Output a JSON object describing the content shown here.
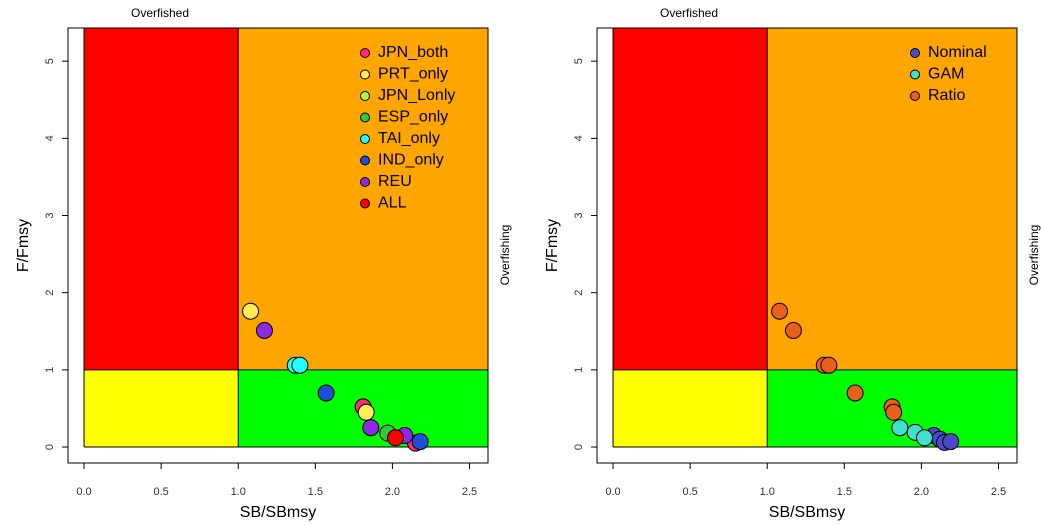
{
  "chart_data": [
    {
      "type": "scatter",
      "xlabel": "SB/SBmsy",
      "ylabel": "F/Fmsy",
      "top_label": "Overfished",
      "right_label": "Overfishing",
      "xlim": [
        -0.104,
        2.62
      ],
      "ylim": [
        -0.207,
        5.43
      ],
      "xticks": [
        {
          "value": 0,
          "label": "0.0"
        },
        {
          "value": 0.5,
          "label": "0.5"
        },
        {
          "value": 1,
          "label": "1.0"
        },
        {
          "value": 1.5,
          "label": "1.5"
        },
        {
          "value": 2,
          "label": "2.0"
        },
        {
          "value": 2.5,
          "label": "2.5"
        }
      ],
      "yticks": [
        0,
        1,
        2,
        3,
        4,
        5
      ],
      "vline": 1,
      "hline": 1,
      "quadrant_colors": {
        "top_left": "#ff0000",
        "top_right": "#ffa500",
        "bottom_left": "#ffff00",
        "bottom_right": "#00ff00"
      },
      "legend": "top-right",
      "series": [
        {
          "name": "JPN_both",
          "color": "#ff2a7a",
          "x": [
            1.81,
            2.15
          ],
          "y": [
            0.52,
            0.05
          ]
        },
        {
          "name": "PRT_only",
          "color": "#ffee55",
          "x": [
            1.08,
            1.83
          ],
          "y": [
            1.76,
            0.45
          ]
        },
        {
          "name": "JPN_Lonly",
          "color": "#aaff33",
          "x": [],
          "y": []
        },
        {
          "name": "ESP_only",
          "color": "#33cc33",
          "x": [
            1.97
          ],
          "y": [
            0.18
          ]
        },
        {
          "name": "TAI_only",
          "color": "#22ffff",
          "x": [
            1.37,
            1.4
          ],
          "y": [
            1.06,
            1.06
          ]
        },
        {
          "name": "IND_only",
          "color": "#1e4fd8",
          "x": [
            1.57,
            2.18
          ],
          "y": [
            0.7,
            0.07
          ]
        },
        {
          "name": "REU",
          "color": "#8a2be2",
          "x": [
            1.17,
            1.86,
            2.08
          ],
          "y": [
            1.51,
            0.25,
            0.15
          ]
        },
        {
          "name": "ALL",
          "color": "#ff0000",
          "x": [
            2.02
          ],
          "y": [
            0.12
          ]
        }
      ]
    },
    {
      "type": "scatter",
      "xlabel": "SB/SBmsy",
      "ylabel": "F/Fmsy",
      "top_label": "Overfished",
      "right_label": "Overfishing",
      "xlim": [
        -0.104,
        2.62
      ],
      "ylim": [
        -0.207,
        5.43
      ],
      "xticks": [
        {
          "value": 0,
          "label": "0.0"
        },
        {
          "value": 0.5,
          "label": "0.5"
        },
        {
          "value": 1,
          "label": "1.0"
        },
        {
          "value": 1.5,
          "label": "1.5"
        },
        {
          "value": 2,
          "label": "2.0"
        },
        {
          "value": 2.5,
          "label": "2.5"
        }
      ],
      "yticks": [
        0,
        1,
        2,
        3,
        4,
        5
      ],
      "vline": 1,
      "hline": 1,
      "quadrant_colors": {
        "top_left": "#ff0000",
        "top_right": "#ffa500",
        "bottom_left": "#ffff00",
        "bottom_right": "#00ff00"
      },
      "legend": "top-right",
      "series": [
        {
          "name": "Nominal",
          "color": "#4a4ac8",
          "x": [
            2.08,
            2.12,
            2.15,
            2.19
          ],
          "y": [
            0.15,
            0.1,
            0.06,
            0.07
          ]
        },
        {
          "name": "GAM",
          "color": "#40e0d0",
          "x": [
            1.86,
            1.96,
            2.02
          ],
          "y": [
            0.25,
            0.19,
            0.12
          ]
        },
        {
          "name": "Ratio",
          "color": "#e8601c",
          "x": [
            1.08,
            1.17,
            1.37,
            1.4,
            1.57,
            1.81,
            1.82
          ],
          "y": [
            1.76,
            1.51,
            1.06,
            1.06,
            0.7,
            0.52,
            0.45
          ]
        }
      ]
    }
  ]
}
